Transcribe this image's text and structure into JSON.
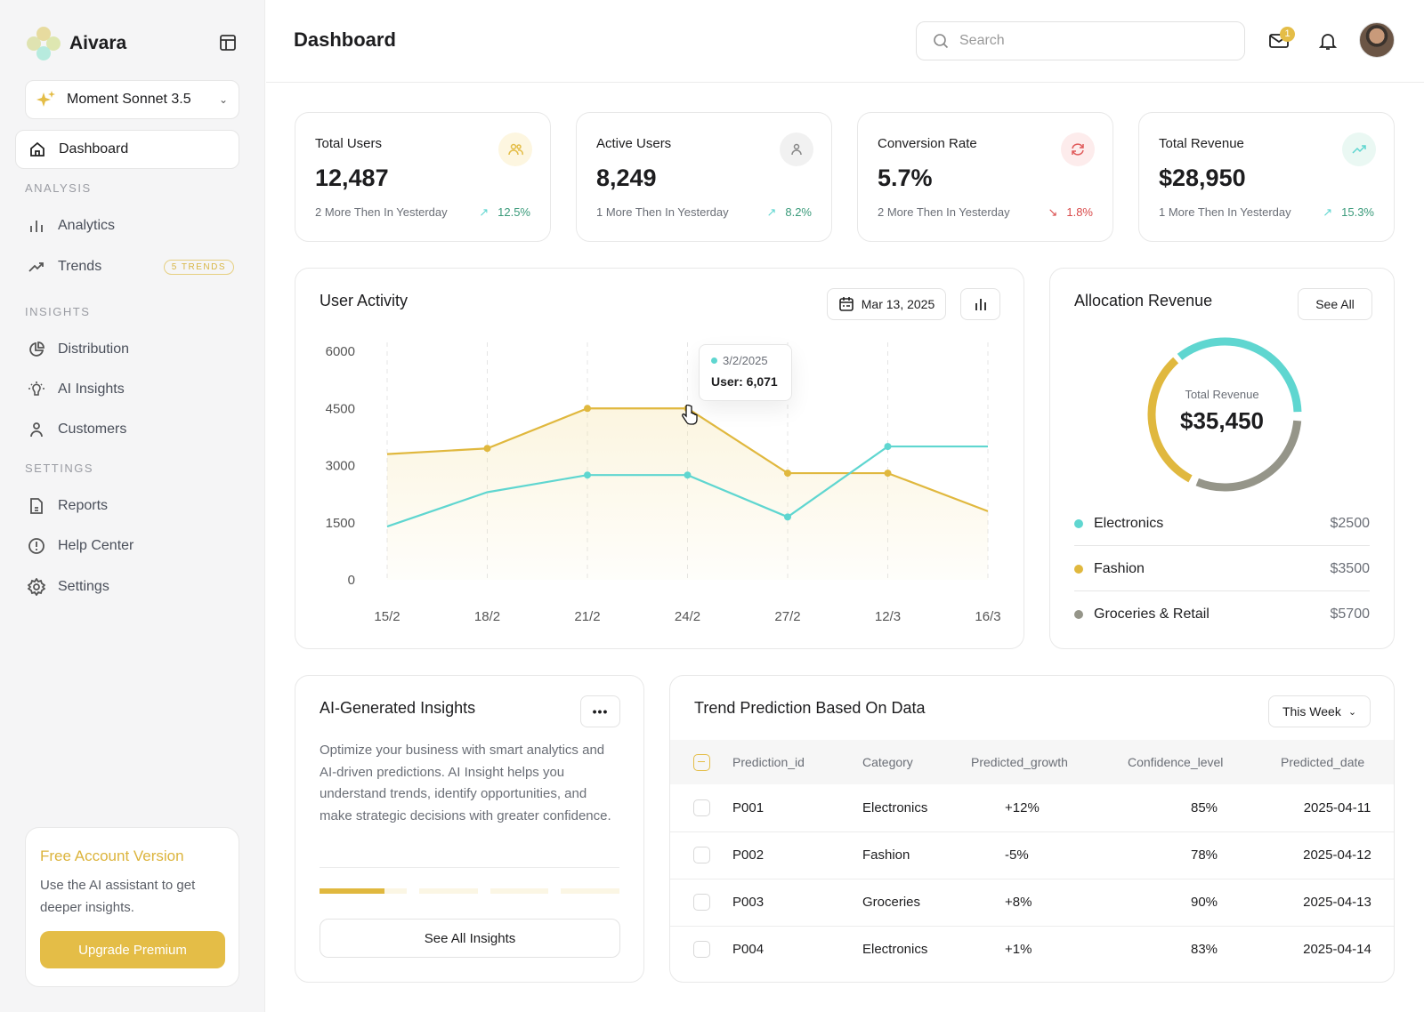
{
  "app": {
    "name": "Aivara",
    "model": "Moment Sonnet 3.5"
  },
  "sidebar": {
    "dashboard": "Dashboard",
    "sections": [
      "ANALYSIS",
      "INSIGHTS",
      "SETTINGS"
    ],
    "analysis": [
      {
        "label": "Analytics",
        "icon": "bar-chart-icon"
      },
      {
        "label": "Trends",
        "icon": "trend-icon",
        "badge": "5 TRENDS"
      }
    ],
    "insights": [
      {
        "label": "Distribution",
        "icon": "pie-chart-icon"
      },
      {
        "label": "AI Insights",
        "icon": "lightbulb-icon"
      },
      {
        "label": "Customers",
        "icon": "user-icon"
      }
    ],
    "settings": [
      {
        "label": "Reports",
        "icon": "document-icon"
      },
      {
        "label": "Help Center",
        "icon": "alert-circle-icon"
      },
      {
        "label": "Settings",
        "icon": "gear-icon"
      }
    ],
    "promo": {
      "title": "Free Account Version",
      "text": "Use the AI assistant to get deeper insights.",
      "button": "Upgrade Premium"
    }
  },
  "header": {
    "title": "Dashboard",
    "search_placeholder": "Search",
    "mail_count": "1"
  },
  "stats": [
    {
      "title": "Total Users",
      "value": "12,487",
      "sub": "2 More Then In Yesterday",
      "delta": "12.5%",
      "trend": "up",
      "icon": "users-icon",
      "color": "#e4bd47"
    },
    {
      "title": "Active Users",
      "value": "8,249",
      "sub": "1 More Then In Yesterday",
      "delta": "8.2%",
      "trend": "up",
      "icon": "user-icon",
      "color": "#888888"
    },
    {
      "title": "Conversion Rate",
      "value": "5.7%",
      "sub": "2 More Then In Yesterday",
      "delta": "1.8%",
      "trend": "down",
      "icon": "refresh-icon",
      "color": "#e05a5a"
    },
    {
      "title": "Total Revenue",
      "value": "$28,950",
      "sub": "1 More Then In Yesterday",
      "delta": "15.3%",
      "trend": "up",
      "icon": "trending-up-icon",
      "color": "#5fd6d0"
    }
  ],
  "activity": {
    "title": "User Activity",
    "date": "Mar 13, 2025",
    "tooltip": {
      "date": "3/2/2025",
      "value": "User: 6,071"
    }
  },
  "chart_data": {
    "type": "line",
    "categories": [
      "15/2",
      "18/2",
      "21/2",
      "24/2",
      "27/2",
      "12/3",
      "16/3"
    ],
    "yticks": [
      "6000",
      "4500",
      "3000",
      "1500",
      "0"
    ],
    "ylim": [
      0,
      6000
    ],
    "grid": "vertical dashed",
    "series": [
      {
        "color": "#e0b83e",
        "values": [
          3300,
          3450,
          4500,
          4500,
          2800,
          2800,
          1800
        ],
        "area": true
      },
      {
        "color": "#5fd6d0",
        "values": [
          1400,
          2300,
          2750,
          2750,
          1650,
          3500,
          3500
        ]
      }
    ]
  },
  "allocation": {
    "title": "Allocation Revenue",
    "see_all": "See All",
    "center_label": "Total Revenue",
    "total": "$35,450",
    "items": [
      {
        "label": "Electronics",
        "value": "$2500",
        "color": "#5fd6d0"
      },
      {
        "label": "Fashion",
        "value": "$3500",
        "color": "#e0b83e"
      },
      {
        "label": "Groceries & Retail",
        "value": "$5700",
        "color": "#959589"
      }
    ]
  },
  "insights": {
    "title": "AI-Generated Insights",
    "text": "Optimize your business with smart analytics and AI-driven predictions. AI Insight helps you understand trends, identify opportunities, and make strategic decisions with greater confidence.",
    "button": "See All Insights",
    "progress_step": 1,
    "progress_steps": 4
  },
  "trend": {
    "title": "Trend Prediction Based On Data",
    "filter": "This Week",
    "columns": [
      "Prediction_id",
      "Category",
      "Predicted_growth",
      "Confidence_level",
      "Predicted_date"
    ],
    "rows": [
      [
        "P001",
        "Electronics",
        "+12%",
        "85%",
        "2025-04-11"
      ],
      [
        "P002",
        "Fashion",
        "-5%",
        "78%",
        "2025-04-12"
      ],
      [
        "P003",
        "Groceries",
        "+8%",
        "90%",
        "2025-04-13"
      ],
      [
        "P004",
        "Electronics",
        "+1%",
        "83%",
        "2025-04-14"
      ]
    ]
  }
}
